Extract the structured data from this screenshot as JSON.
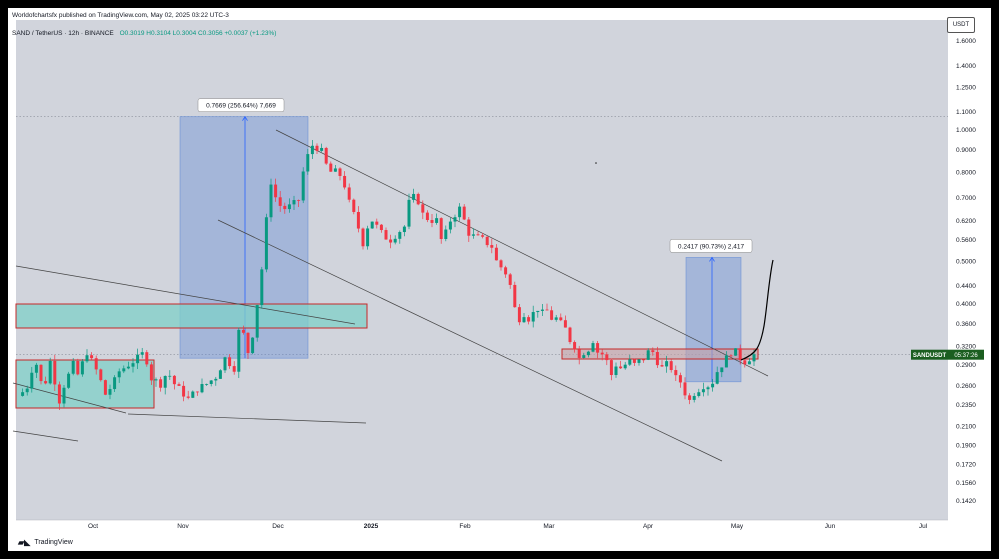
{
  "header": {
    "publisher": "Worldofchartsfx published on TradingView.com, May 02, 2025 03:22 UTC-3",
    "symbol": "SAND / TetherUS · 12h · BINANCE",
    "ohlc": "O0.3019  H0.3104  L0.3004  C0.3056  +0.0037 (+1.23%)",
    "currency_button": "USDT"
  },
  "footer": {
    "brand": "TradingView",
    "logo": "tradingview-logo-icon"
  },
  "colors": {
    "up": "#089981",
    "down": "#f23645",
    "box_fill": "#5b87d6",
    "zone_fill": "#7fd0c8",
    "zone_border": "#c62828",
    "bg": "#d1d4dc"
  },
  "chart_data": {
    "type": "candlestick",
    "scale": "log",
    "ylim": [
      0.128,
      1.78
    ],
    "y_ticks": [
      "1.6000",
      "1.4000",
      "1.2500",
      "1.1000",
      "1.0000",
      "0.9000",
      "0.8000",
      "0.7000",
      "0.6200",
      "0.5600",
      "0.5000",
      "0.4400",
      "0.4000",
      "0.3600",
      "0.3200",
      "0.2900",
      "0.2600",
      "0.2350",
      "0.2100",
      "0.1900",
      "0.1720",
      "0.1560",
      "0.1420"
    ],
    "x_ticks": [
      "Oct",
      "Nov",
      "Dec",
      "2025",
      "Feb",
      "Mar",
      "Apr",
      "May",
      "Jun",
      "Jul"
    ],
    "last_price_label": {
      "symbol": "SANDUSDT",
      "timer": "05:37:26",
      "value": 0.3056
    },
    "measurements": [
      {
        "label": "0.7669 (256.64%) 7,669",
        "from": 0.3,
        "to": 1.07
      },
      {
        "label": "0.2417 (90.73%) 2,417",
        "from": 0.265,
        "to": 0.51
      }
    ],
    "price_path_keypoints": [
      [
        0.3,
        0.246
      ],
      [
        2.5,
        0.262
      ],
      [
        3.5,
        0.305
      ],
      [
        5.5,
        0.252
      ],
      [
        7,
        0.295
      ],
      [
        9,
        0.24
      ],
      [
        10,
        0.26
      ],
      [
        12,
        0.29
      ],
      [
        13,
        0.275
      ],
      [
        15,
        0.31
      ],
      [
        17.5,
        0.275
      ],
      [
        19,
        0.248
      ],
      [
        20.5,
        0.26
      ],
      [
        22,
        0.28
      ],
      [
        24,
        0.29
      ],
      [
        26,
        0.3
      ],
      [
        27.5,
        0.31
      ],
      [
        29,
        0.27
      ],
      [
        31,
        0.262
      ],
      [
        32.5,
        0.28
      ],
      [
        34,
        0.262
      ],
      [
        35.5,
        0.252
      ],
      [
        37,
        0.242
      ],
      [
        39,
        0.255
      ],
      [
        41,
        0.262
      ],
      [
        43,
        0.272
      ],
      [
        45,
        0.3
      ],
      [
        47,
        0.285
      ],
      [
        48,
        0.345
      ],
      [
        49,
        0.34
      ],
      [
        50,
        0.31
      ],
      [
        51,
        0.34
      ],
      [
        52,
        0.4
      ],
      [
        53,
        0.48
      ],
      [
        54,
        0.62
      ],
      [
        55,
        0.76
      ],
      [
        56,
        0.7
      ],
      [
        57,
        0.67
      ],
      [
        58,
        0.66
      ],
      [
        59.5,
        0.67
      ],
      [
        61,
        0.69
      ],
      [
        62,
        0.8
      ],
      [
        63,
        0.87
      ],
      [
        64,
        0.92
      ],
      [
        65,
        0.91
      ],
      [
        66,
        0.89
      ],
      [
        67,
        0.83
      ],
      [
        68,
        0.8
      ],
      [
        69,
        0.8
      ],
      [
        70.5,
        0.78
      ],
      [
        72,
        0.68
      ],
      [
        73.5,
        0.62
      ],
      [
        75,
        0.55
      ],
      [
        76,
        0.6
      ],
      [
        77,
        0.62
      ],
      [
        78,
        0.6
      ],
      [
        79.5,
        0.57
      ],
      [
        81,
        0.56
      ],
      [
        82.5,
        0.58
      ],
      [
        84,
        0.6
      ],
      [
        85,
        0.68
      ],
      [
        86.5,
        0.71
      ],
      [
        88,
        0.64
      ],
      [
        89.5,
        0.62
      ],
      [
        91,
        0.62
      ],
      [
        92,
        0.56
      ],
      [
        93,
        0.58
      ],
      [
        94,
        0.62
      ],
      [
        95,
        0.64
      ],
      [
        96,
        0.66
      ],
      [
        97,
        0.62
      ],
      [
        98,
        0.58
      ],
      [
        99,
        0.57
      ],
      [
        101,
        0.56
      ],
      [
        103,
        0.54
      ],
      [
        104,
        0.5
      ],
      [
        106,
        0.47
      ],
      [
        107,
        0.44
      ],
      [
        108,
        0.39
      ],
      [
        109,
        0.37
      ],
      [
        110,
        0.38
      ],
      [
        111,
        0.37
      ],
      [
        112,
        0.38
      ],
      [
        113,
        0.39
      ],
      [
        114,
        0.38
      ],
      [
        115,
        0.385
      ],
      [
        116,
        0.37
      ],
      [
        117.5,
        0.37
      ],
      [
        118,
        0.36
      ],
      [
        119,
        0.35
      ],
      [
        120,
        0.33
      ],
      [
        121,
        0.32
      ],
      [
        122,
        0.3
      ],
      [
        123,
        0.31
      ],
      [
        124,
        0.315
      ],
      [
        125,
        0.33
      ],
      [
        126,
        0.31
      ],
      [
        127.5,
        0.305
      ],
      [
        128,
        0.295
      ],
      [
        129,
        0.275
      ],
      [
        130,
        0.29
      ],
      [
        131,
        0.285
      ],
      [
        132,
        0.29
      ],
      [
        133,
        0.295
      ],
      [
        134,
        0.29
      ],
      [
        135,
        0.295
      ],
      [
        136,
        0.3
      ],
      [
        137,
        0.31
      ],
      [
        138,
        0.31
      ],
      [
        139,
        0.295
      ],
      [
        140,
        0.285
      ],
      [
        141,
        0.29
      ],
      [
        142,
        0.285
      ],
      [
        143,
        0.27
      ],
      [
        144,
        0.265
      ],
      [
        145,
        0.25
      ],
      [
        146,
        0.24
      ],
      [
        147,
        0.25
      ],
      [
        148,
        0.255
      ],
      [
        149,
        0.26
      ],
      [
        150,
        0.26
      ],
      [
        151,
        0.265
      ],
      [
        152,
        0.28
      ],
      [
        153,
        0.29
      ],
      [
        154,
        0.3
      ],
      [
        155,
        0.31
      ],
      [
        156,
        0.31
      ],
      [
        157,
        0.3
      ],
      [
        158,
        0.295
      ],
      [
        159,
        0.3
      ],
      [
        160,
        0.3056
      ]
    ]
  }
}
